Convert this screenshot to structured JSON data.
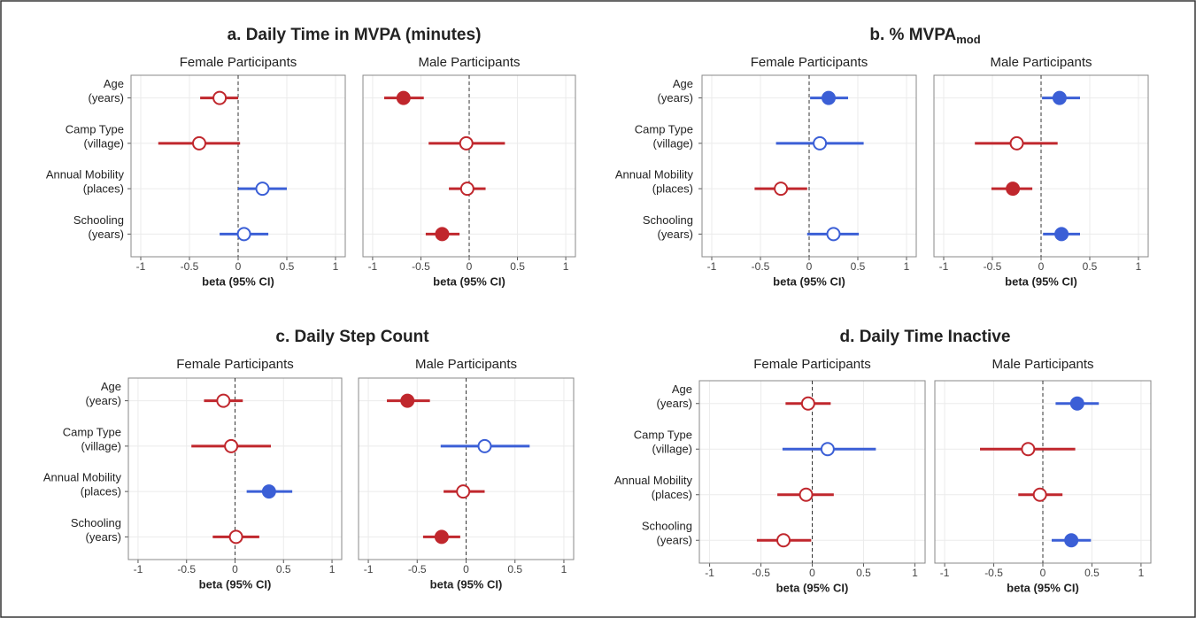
{
  "chart_data": [
    {
      "type": "forest",
      "title": "a. Daily Time in MVPA (minutes)",
      "categories": [
        [
          "Age",
          "(years)"
        ],
        [
          "Camp Type",
          "(village)"
        ],
        [
          "Annual Mobility",
          "(places)"
        ],
        [
          "Schooling",
          "(years)"
        ]
      ],
      "xlabel": "beta (95% CI)",
      "xlim": [
        -1.1,
        1.1
      ],
      "xticks": [
        -1,
        -0.5,
        0,
        0.5,
        1
      ],
      "reference_line": 0,
      "grid": true,
      "facets": [
        {
          "name": "Female Participants",
          "estimates": [
            -0.19,
            -0.4,
            0.25,
            0.06
          ],
          "lower": [
            -0.39,
            -0.82,
            0.0,
            -0.19
          ],
          "upper": [
            0.0,
            0.02,
            0.5,
            0.31
          ],
          "colors": [
            "#c0272d",
            "#c0272d",
            "#3b5fd6",
            "#3b5fd6"
          ],
          "filled": [
            false,
            false,
            false,
            false
          ]
        },
        {
          "name": "Male Participants",
          "estimates": [
            -0.68,
            -0.03,
            -0.02,
            -0.28
          ],
          "lower": [
            -0.88,
            -0.42,
            -0.21,
            -0.45
          ],
          "upper": [
            -0.47,
            0.37,
            0.17,
            -0.1
          ],
          "colors": [
            "#c0272d",
            "#c0272d",
            "#c0272d",
            "#c0272d"
          ],
          "filled": [
            true,
            false,
            false,
            true
          ]
        }
      ]
    },
    {
      "type": "forest",
      "title": "b. % MVPA",
      "title_subscript": "mod",
      "categories": [
        [
          "Age",
          "(years)"
        ],
        [
          "Camp Type",
          "(village)"
        ],
        [
          "Annual Mobility",
          "(places)"
        ],
        [
          "Schooling",
          "(years)"
        ]
      ],
      "xlabel": "beta (95% CI)",
      "xlim": [
        -1.1,
        1.1
      ],
      "xticks": [
        -1,
        -0.5,
        0,
        0.5,
        1
      ],
      "reference_line": 0,
      "grid": true,
      "facets": [
        {
          "name": "Female Participants",
          "estimates": [
            0.2,
            0.11,
            -0.29,
            0.25
          ],
          "lower": [
            0.01,
            -0.34,
            -0.56,
            -0.02
          ],
          "upper": [
            0.4,
            0.56,
            -0.02,
            0.51
          ],
          "colors": [
            "#3b5fd6",
            "#3b5fd6",
            "#c0272d",
            "#3b5fd6"
          ],
          "filled": [
            true,
            false,
            false,
            false
          ]
        },
        {
          "name": "Male Participants",
          "estimates": [
            0.19,
            -0.25,
            -0.29,
            0.21
          ],
          "lower": [
            0.01,
            -0.68,
            -0.51,
            0.02
          ],
          "upper": [
            0.4,
            0.17,
            -0.09,
            0.4
          ],
          "colors": [
            "#3b5fd6",
            "#c0272d",
            "#c0272d",
            "#3b5fd6"
          ],
          "filled": [
            true,
            false,
            true,
            true
          ]
        }
      ]
    },
    {
      "type": "forest",
      "title": "c. Daily Step Count",
      "categories": [
        [
          "Age",
          "(years)"
        ],
        [
          "Camp Type",
          "(village)"
        ],
        [
          "Annual Mobility",
          "(places)"
        ],
        [
          "Schooling",
          "(years)"
        ]
      ],
      "xlabel": "beta (95% CI)",
      "xlim": [
        -1.1,
        1.1
      ],
      "xticks": [
        -1,
        -0.5,
        0,
        0.5,
        1
      ],
      "reference_line": 0,
      "grid": true,
      "facets": [
        {
          "name": "Female Participants",
          "estimates": [
            -0.12,
            -0.04,
            0.35,
            0.01
          ],
          "lower": [
            -0.32,
            -0.45,
            0.12,
            -0.23
          ],
          "upper": [
            0.08,
            0.37,
            0.59,
            0.25
          ],
          "colors": [
            "#c0272d",
            "#c0272d",
            "#3b5fd6",
            "#c0272d"
          ],
          "filled": [
            false,
            false,
            true,
            false
          ]
        },
        {
          "name": "Male Participants",
          "estimates": [
            -0.6,
            0.19,
            -0.03,
            -0.25
          ],
          "lower": [
            -0.81,
            -0.26,
            -0.23,
            -0.44
          ],
          "upper": [
            -0.37,
            0.65,
            0.19,
            -0.06
          ],
          "colors": [
            "#c0272d",
            "#3b5fd6",
            "#c0272d",
            "#c0272d"
          ],
          "filled": [
            true,
            false,
            false,
            true
          ]
        }
      ]
    },
    {
      "type": "forest",
      "title": "d. Daily Time Inactive",
      "categories": [
        [
          "Age",
          "(years)"
        ],
        [
          "Camp Type",
          "(village)"
        ],
        [
          "Annual Mobility",
          "(places)"
        ],
        [
          "Schooling",
          "(years)"
        ]
      ],
      "xlabel": "beta (95% CI)",
      "xlim": [
        -1.1,
        1.1
      ],
      "xticks": [
        -1,
        -0.5,
        0,
        0.5,
        1
      ],
      "reference_line": 0,
      "grid": true,
      "facets": [
        {
          "name": "Female Participants",
          "estimates": [
            -0.04,
            0.15,
            -0.06,
            -0.28
          ],
          "lower": [
            -0.26,
            -0.29,
            -0.34,
            -0.54
          ],
          "upper": [
            0.18,
            0.62,
            0.21,
            -0.01
          ],
          "colors": [
            "#c0272d",
            "#3b5fd6",
            "#c0272d",
            "#c0272d"
          ],
          "filled": [
            false,
            false,
            false,
            false
          ]
        },
        {
          "name": "Male Participants",
          "estimates": [
            0.35,
            -0.15,
            -0.03,
            0.29
          ],
          "lower": [
            0.13,
            -0.64,
            -0.25,
            0.09
          ],
          "upper": [
            0.57,
            0.33,
            0.2,
            0.49
          ],
          "colors": [
            "#3b5fd6",
            "#c0272d",
            "#c0272d",
            "#3b5fd6"
          ],
          "filled": [
            true,
            false,
            false,
            true
          ]
        }
      ]
    }
  ]
}
